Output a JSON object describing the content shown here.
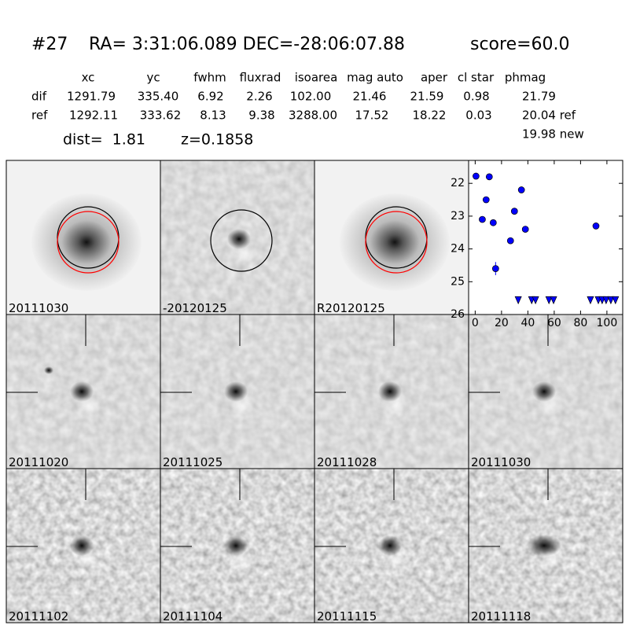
{
  "header": {
    "id": "#27",
    "coords": "RA= 3:31:06.089 DEC=-28:06:07.88",
    "score": "score=60.0"
  },
  "table": {
    "columns": [
      "xc",
      "yc",
      "fwhm",
      "fluxrad",
      "isoarea",
      "mag auto",
      "aper",
      "cl star",
      "phmag"
    ],
    "rows": [
      [
        "dif",
        "1291.79",
        "335.40",
        "6.92",
        "2.26",
        "102.00",
        "21.46",
        "21.59",
        "0.98",
        "21.79"
      ],
      [
        "ref",
        "1292.11",
        "333.62",
        "8.13",
        "9.38",
        "3288.00",
        "17.52",
        "18.22",
        "0.03",
        "20.04 ref"
      ]
    ],
    "extra": "19.98 new"
  },
  "dist": "dist=  1.81",
  "z": "z=0.1858",
  "panels": [
    {
      "label": "20111030"
    },
    {
      "label": "-20120125"
    },
    {
      "label": "R20120125"
    },
    {
      "label": "20111020"
    },
    {
      "label": "20111025"
    },
    {
      "label": "20111028"
    },
    {
      "label": "20111030",
      "label_color": "#ff0000"
    },
    {
      "label": "20111102"
    },
    {
      "label": "20111104"
    },
    {
      "label": "20111115"
    },
    {
      "label": "20111118"
    }
  ],
  "chart_data": {
    "type": "scatter",
    "xlim": [
      -5,
      112
    ],
    "xticks": [
      0,
      20,
      40,
      60,
      80,
      100
    ],
    "ylim": [
      26,
      21.3
    ],
    "yticks": [
      22,
      23,
      24,
      25,
      26
    ],
    "series": [
      {
        "marker": "circle",
        "color": "#0000ff",
        "x": [
          0.6,
          5.4,
          8.3,
          10.7,
          13.7,
          15.5,
          26.8,
          29.8,
          35.1,
          38.1,
          91.7
        ],
        "values": [
          21.78,
          23.1,
          22.5,
          21.8,
          23.2,
          24.6,
          23.75,
          22.85,
          22.2,
          23.4,
          23.3
        ],
        "errors": [
          0.05,
          0.05,
          0.05,
          0.05,
          0.05,
          0.2,
          0.07,
          0.05,
          0.05,
          0.1,
          0.05
        ]
      },
      {
        "marker": "triangle",
        "color": "#0000ff",
        "x": [
          32.7,
          42.9,
          45.8,
          56,
          59.5,
          87.5,
          93.5,
          96.4,
          99.4,
          103,
          106.5
        ],
        "values": [
          25.55,
          25.55,
          25.55,
          25.55,
          25.55,
          25.55,
          25.55,
          25.55,
          25.55,
          25.55,
          25.55
        ]
      }
    ]
  }
}
